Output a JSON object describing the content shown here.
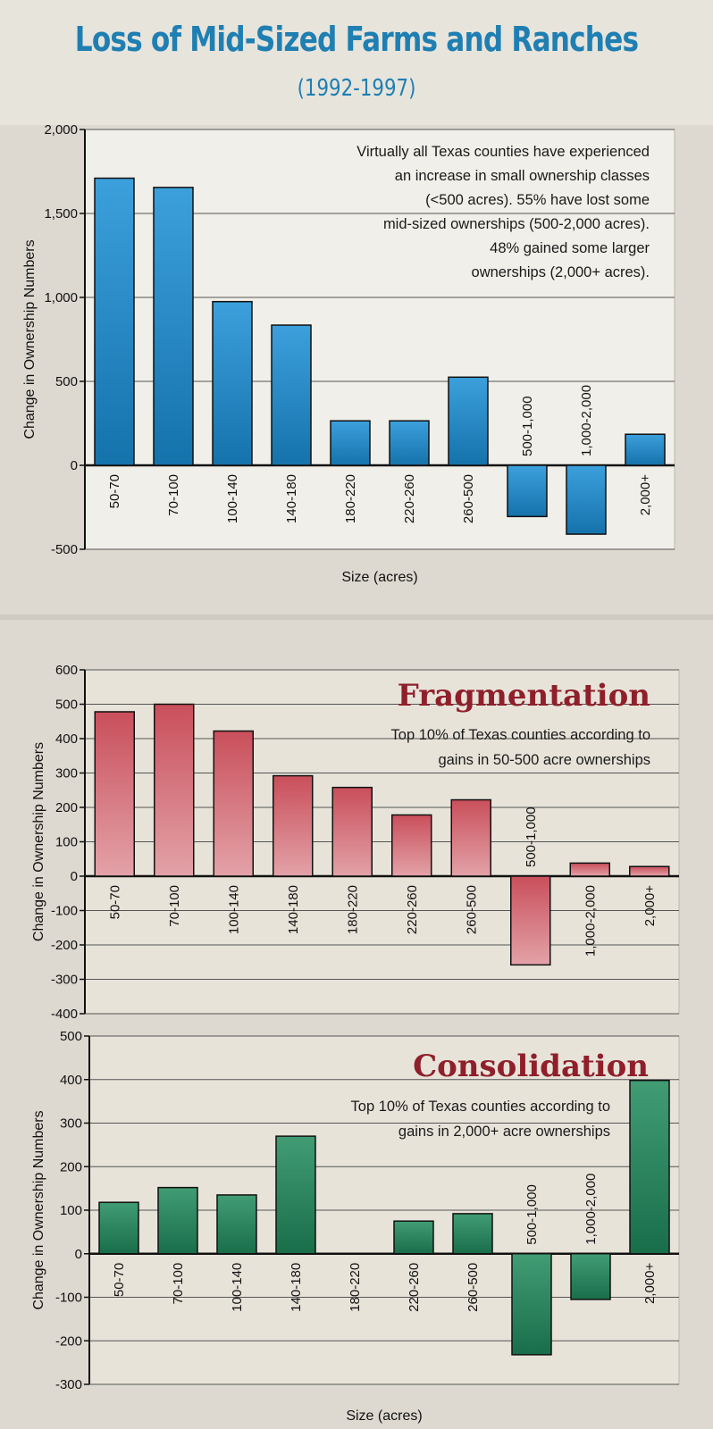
{
  "header": {
    "title": "Loss of Mid-Sized Farms and Ranches",
    "subtitle": "(1992-1997)"
  },
  "chart_data": [
    {
      "type": "bar",
      "title": "",
      "annotation": [
        "Virtually all Texas counties have experienced",
        "an increase in small ownership classes",
        "(<500 acres).  55% have lost some",
        "mid-sized ownerships (500-2,000 acres).",
        "48% gained some larger",
        "ownerships (2,000+ acres)."
      ],
      "categories": [
        "50-70",
        "70-100",
        "100-140",
        "140-180",
        "180-220",
        "220-260",
        "260-500",
        "500-1,000",
        "1,000-2,000",
        "2,000+"
      ],
      "values": [
        1710,
        1655,
        975,
        835,
        265,
        265,
        525,
        -305,
        -410,
        185
      ],
      "xlabel": "Size (acres)",
      "ylabel": "Change in Ownership Numbers",
      "ylim": [
        -500,
        2000
      ],
      "yticks": [
        -500,
        0,
        500,
        1000,
        1500,
        2000
      ],
      "ytick_labels": [
        "-500",
        "0",
        "500",
        "1,000",
        "1,500",
        "2,000"
      ],
      "bar_color": "#1a8fd6",
      "grid": true
    },
    {
      "type": "bar",
      "title": "Fragmentation",
      "title_color": "#8f1f2b",
      "annotation": [
        "Top 10% of Texas counties according to",
        "gains in 50-500 acre ownerships"
      ],
      "categories": [
        "50-70",
        "70-100",
        "100-140",
        "140-180",
        "180-220",
        "220-260",
        "260-500",
        "500-1,000",
        "1,000-2,000",
        "2,000+"
      ],
      "values": [
        478,
        500,
        422,
        292,
        258,
        178,
        222,
        -258,
        38,
        28
      ],
      "xlabel": "",
      "ylabel": "Change in Ownership Numbers",
      "ylim": [
        -400,
        600
      ],
      "yticks": [
        -400,
        -300,
        -200,
        -100,
        0,
        100,
        200,
        300,
        400,
        500,
        600
      ],
      "ytick_labels": [
        "-400",
        "-300",
        "-200",
        "-100",
        "0",
        "100",
        "200",
        "300",
        "400",
        "500",
        "600"
      ],
      "bar_color": "#c0303e",
      "grid": true
    },
    {
      "type": "bar",
      "title": "Consolidation",
      "title_color": "#8f1f2b",
      "annotation": [
        "Top 10% of Texas counties according to",
        "gains in 2,000+ acre ownerships"
      ],
      "categories": [
        "50-70",
        "70-100",
        "100-140",
        "140-180",
        "180-220",
        "220-260",
        "260-500",
        "500-1,000",
        "1,000-2,000",
        "2,000+"
      ],
      "values": [
        118,
        152,
        135,
        270,
        0,
        75,
        92,
        -232,
        -105,
        398
      ],
      "xlabel": "Size (acres)",
      "ylabel": "Change in Ownership Numbers",
      "ylim": [
        -300,
        500
      ],
      "yticks": [
        -300,
        -200,
        -100,
        0,
        100,
        200,
        300,
        400,
        500
      ],
      "ytick_labels": [
        "-300",
        "-200",
        "-100",
        "0",
        "100",
        "200",
        "300",
        "400",
        "500"
      ],
      "bar_color": "#1f8a5c",
      "grid": true
    }
  ]
}
